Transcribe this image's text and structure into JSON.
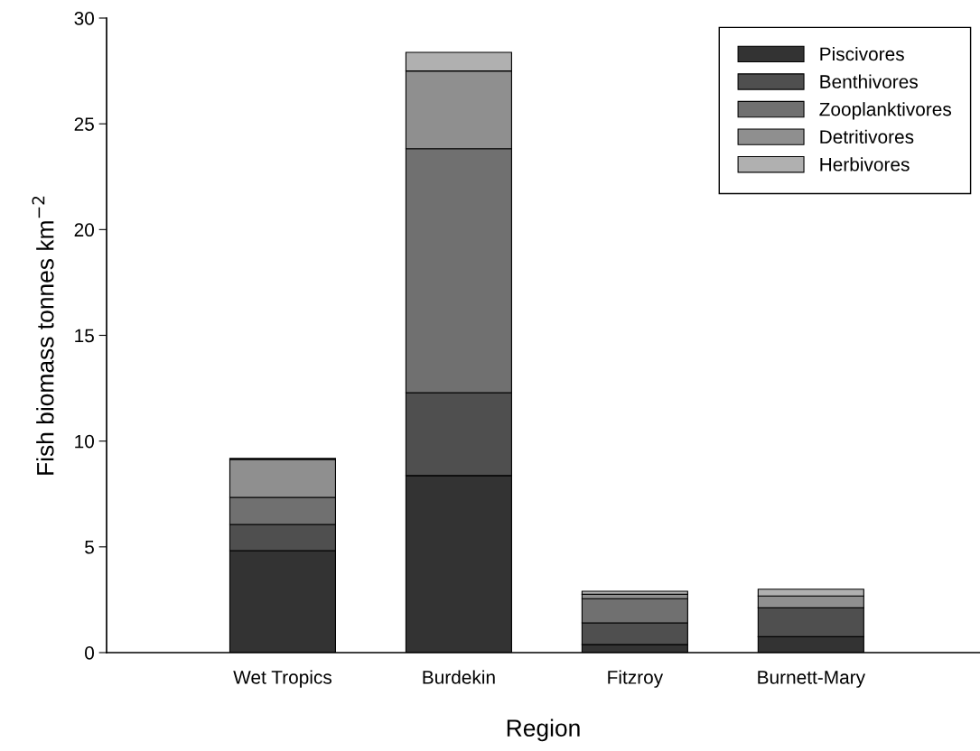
{
  "chart_data": {
    "type": "bar",
    "stacked": true,
    "xlabel": "Region",
    "ylabel": "Fish biomass tonnes km$^{−2}$",
    "categories": [
      "Wet Tropics",
      "Burdekin",
      "Fitzroy",
      "Burnett-Mary"
    ],
    "series": [
      {
        "name": "Piscivores",
        "color": "#333333",
        "values": [
          4.82,
          8.37,
          0.38,
          0.75
        ]
      },
      {
        "name": "Benthivores",
        "color": "#4f4f4f",
        "values": [
          1.24,
          3.92,
          1.03,
          1.37
        ]
      },
      {
        "name": "Zooplanktivores",
        "color": "#707070",
        "values": [
          1.28,
          11.53,
          1.14,
          null
        ]
      },
      {
        "name": "Detritivores",
        "color": "#8f8f8f",
        "values": [
          1.79,
          3.68,
          0.21,
          0.56
        ]
      },
      {
        "name": "Herbivores",
        "color": "#b0b0b0",
        "values": [
          0.05,
          0.88,
          0.14,
          0.32
        ]
      }
    ],
    "ylim": [
      0,
      30
    ],
    "yticks": [
      0,
      5,
      10,
      15,
      20,
      25,
      30
    ],
    "grid": false,
    "legend": "top right"
  }
}
